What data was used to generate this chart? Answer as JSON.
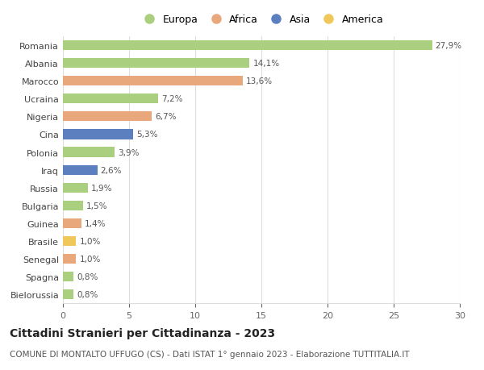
{
  "countries": [
    "Romania",
    "Albania",
    "Marocco",
    "Ucraina",
    "Nigeria",
    "Cina",
    "Polonia",
    "Iraq",
    "Russia",
    "Bulgaria",
    "Guinea",
    "Brasile",
    "Senegal",
    "Spagna",
    "Bielorussia"
  ],
  "values": [
    27.9,
    14.1,
    13.6,
    7.2,
    6.7,
    5.3,
    3.9,
    2.6,
    1.9,
    1.5,
    1.4,
    1.0,
    1.0,
    0.8,
    0.8
  ],
  "labels": [
    "27,9%",
    "14,1%",
    "13,6%",
    "7,2%",
    "6,7%",
    "5,3%",
    "3,9%",
    "2,6%",
    "1,9%",
    "1,5%",
    "1,4%",
    "1,0%",
    "1,0%",
    "0,8%",
    "0,8%"
  ],
  "continents": [
    "Europa",
    "Europa",
    "Africa",
    "Europa",
    "Africa",
    "Asia",
    "Europa",
    "Asia",
    "Europa",
    "Europa",
    "Africa",
    "America",
    "Africa",
    "Europa",
    "Europa"
  ],
  "colors": {
    "Europa": "#aacf7e",
    "Africa": "#e8a87c",
    "Asia": "#5b7fbf",
    "America": "#f0c85a"
  },
  "legend_order": [
    "Europa",
    "Africa",
    "Asia",
    "America"
  ],
  "title": "Cittadini Stranieri per Cittadinanza - 2023",
  "subtitle": "COMUNE DI MONTALTO UFFUGO (CS) - Dati ISTAT 1° gennaio 2023 - Elaborazione TUTTITALIA.IT",
  "xlim": [
    0,
    30
  ],
  "xticks": [
    0,
    5,
    10,
    15,
    20,
    25,
    30
  ],
  "background_color": "#ffffff",
  "grid_color": "#dddddd",
  "bar_height": 0.55,
  "title_fontsize": 10,
  "subtitle_fontsize": 7.5,
  "label_fontsize": 7.5,
  "tick_fontsize": 8,
  "legend_fontsize": 9
}
